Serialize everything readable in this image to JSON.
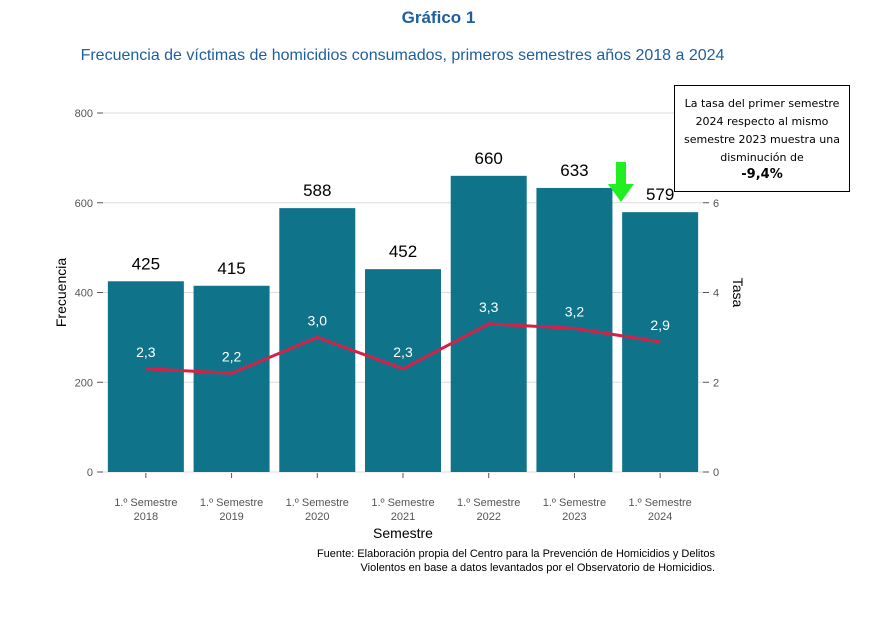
{
  "title": "Gráfico 1",
  "subtitle": "Frecuencia de víctimas de homicidios consumados, primeros semestres años 2018 a 2024",
  "callout": {
    "text": "La tasa del primer semestre 2024 respecto al mismo semestre 2023 muestra una disminución de",
    "value": "-9,4%"
  },
  "source": "Fuente: Elaboración propia del Centro para la Prevención de Homicidios y Delitos Violentos en base a datos levantados por el Observatorio de Homicidios.",
  "colors": {
    "bar": "#0f748a",
    "line": "#d6204a",
    "arrow": "#22ee22",
    "grid": "#dcdcdc"
  },
  "chart_data": {
    "type": "bar",
    "categories": [
      "1.º Semestre 2018",
      "1.º Semestre 2019",
      "1.º Semestre 2020",
      "1.º Semestre 2021",
      "1.º Semestre 2022",
      "1.º Semestre 2023",
      "1.º Semestre 2024"
    ],
    "category_lines": [
      [
        "1.º Semestre",
        "2018"
      ],
      [
        "1.º Semestre",
        "2019"
      ],
      [
        "1.º Semestre",
        "2020"
      ],
      [
        "1.º Semestre",
        "2021"
      ],
      [
        "1.º Semestre",
        "2022"
      ],
      [
        "1.º Semestre",
        "2023"
      ],
      [
        "1.º Semestre",
        "2024"
      ]
    ],
    "series": [
      {
        "values": [
          425,
          415,
          588,
          452,
          660,
          633,
          579
        ],
        "labels": [
          "425",
          "415",
          "588",
          "452",
          "660",
          "633",
          "579"
        ]
      },
      {
        "values": [
          2.3,
          2.2,
          3.0,
          2.3,
          3.3,
          3.2,
          2.9
        ],
        "labels": [
          "2,3",
          "2,2",
          "3,0",
          "2,3",
          "3,3",
          "3,2",
          "2,9"
        ]
      }
    ],
    "xlabel": "Semestre",
    "ylabel": "Frecuencia",
    "y2label": "Tasa",
    "ylim": [
      0,
      800
    ],
    "y2lim": [
      0,
      8
    ],
    "yticks": [
      0,
      200,
      400,
      600,
      800
    ],
    "y2ticks": [
      0,
      2,
      4,
      6
    ],
    "grid": true
  }
}
